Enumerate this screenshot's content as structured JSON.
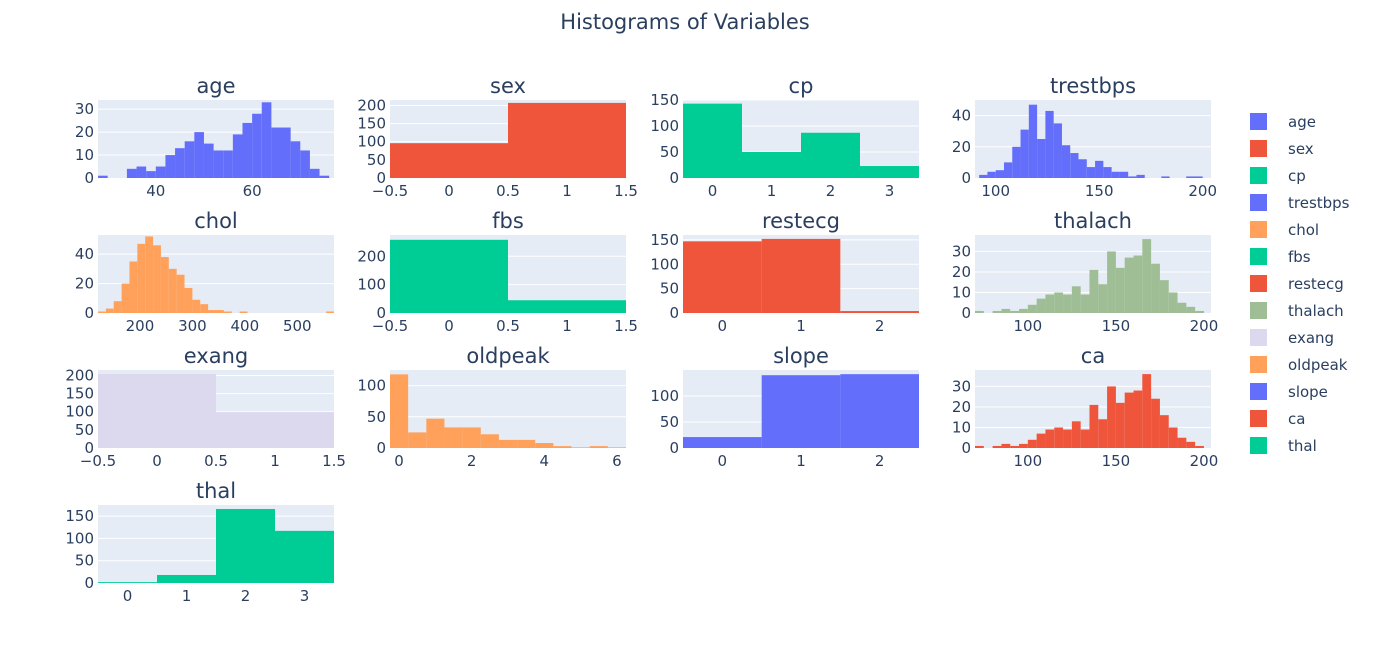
{
  "colors": {
    "blue": "#636efa",
    "red": "#ef553b",
    "teal": "#00cc96",
    "orange": "#ffa15a",
    "sage": "#9fbe95",
    "lavender": "#dcd8ee",
    "plot_bg": "#e5ecf6"
  },
  "chart_data": {
    "type": "bar",
    "title": "Histograms of Variables",
    "legend": {
      "placement": "right",
      "items": [
        {
          "label": "age",
          "color": "#636efa"
        },
        {
          "label": "sex",
          "color": "#ef553b"
        },
        {
          "label": "cp",
          "color": "#00cc96"
        },
        {
          "label": "trestbps",
          "color": "#636efa"
        },
        {
          "label": "chol",
          "color": "#ffa15a"
        },
        {
          "label": "fbs",
          "color": "#00cc96"
        },
        {
          "label": "restecg",
          "color": "#ef553b"
        },
        {
          "label": "thalach",
          "color": "#9fbe95"
        },
        {
          "label": "exang",
          "color": "#dcd8ee"
        },
        {
          "label": "oldpeak",
          "color": "#ffa15a"
        },
        {
          "label": "slope",
          "color": "#636efa"
        },
        {
          "label": "ca",
          "color": "#ef553b"
        },
        {
          "label": "thal",
          "color": "#00cc96"
        }
      ]
    },
    "panels": [
      {
        "title": "age",
        "color": "#636efa",
        "xlim": [
          28,
          77
        ],
        "ylim": [
          0,
          34
        ],
        "xticks": [
          40,
          60
        ],
        "yticks": [
          0,
          10,
          20,
          30
        ],
        "bin_width": 2,
        "bin_start": 28,
        "counts": [
          1,
          0,
          0,
          4,
          5,
          3,
          5,
          10,
          13,
          16,
          20,
          15,
          12,
          12,
          19,
          24,
          28,
          33,
          22,
          22,
          16,
          12,
          4,
          1,
          0,
          1
        ]
      },
      {
        "title": "sex",
        "color": "#ef553b",
        "xlim": [
          -0.5,
          1.5
        ],
        "ylim": [
          0,
          215
        ],
        "xticks": [
          -0.5,
          0,
          0.5,
          1,
          1.5
        ],
        "yticks": [
          0,
          50,
          100,
          150,
          200
        ],
        "bin_width": 1,
        "bin_start": -0.5,
        "counts": [
          96,
          207
        ]
      },
      {
        "title": "cp",
        "color": "#00cc96",
        "xlim": [
          -0.5,
          3.5
        ],
        "ylim": [
          0,
          150
        ],
        "xticks": [
          0,
          1,
          2,
          3
        ],
        "yticks": [
          0,
          50,
          100,
          150
        ],
        "bin_width": 1,
        "bin_start": -0.5,
        "counts": [
          143,
          50,
          87,
          23
        ]
      },
      {
        "title": "trestbps",
        "color": "#636efa",
        "xlim": [
          90,
          204
        ],
        "ylim": [
          0,
          50
        ],
        "xticks": [
          100,
          150,
          200
        ],
        "yticks": [
          0,
          20,
          40
        ],
        "bin_width": 4,
        "bin_start": 92,
        "counts": [
          2,
          4,
          5,
          10,
          20,
          31,
          47,
          25,
          43,
          35,
          21,
          16,
          12,
          7,
          11,
          7,
          4,
          4,
          1,
          2,
          0,
          0,
          1,
          0,
          0,
          1,
          1,
          0,
          1
        ]
      },
      {
        "title": "chol",
        "color": "#ffa15a",
        "xlim": [
          120,
          570
        ],
        "ylim": [
          0,
          53
        ],
        "xticks": [
          200,
          300,
          400,
          500
        ],
        "yticks": [
          0,
          20,
          40
        ],
        "bin_width": 15,
        "bin_start": 120,
        "counts": [
          1,
          3,
          8,
          20,
          35,
          47,
          52,
          46,
          38,
          30,
          26,
          17,
          9,
          6,
          2,
          2,
          1,
          0,
          1,
          0,
          0,
          0,
          0,
          0,
          0,
          0,
          0,
          0,
          0,
          1
        ]
      },
      {
        "title": "fbs",
        "color": "#00cc96",
        "xlim": [
          -0.5,
          1.5
        ],
        "ylim": [
          0,
          275
        ],
        "xticks": [
          -0.5,
          0,
          0.5,
          1,
          1.5
        ],
        "yticks": [
          0,
          100,
          200
        ],
        "bin_width": 1,
        "bin_start": -0.5,
        "counts": [
          258,
          45
        ]
      },
      {
        "title": "restecg",
        "color": "#ef553b",
        "xlim": [
          -0.5,
          2.5
        ],
        "ylim": [
          0,
          160
        ],
        "xticks": [
          0,
          1,
          2
        ],
        "yticks": [
          0,
          50,
          100,
          150
        ],
        "bin_width": 1,
        "bin_start": -0.5,
        "counts": [
          147,
          152,
          4
        ]
      },
      {
        "title": "thalach",
        "color": "#9fbe95",
        "xlim": [
          70,
          204
        ],
        "ylim": [
          0,
          38
        ],
        "xticks": [
          100,
          150,
          200
        ],
        "yticks": [
          0,
          10,
          20,
          30
        ],
        "bin_width": 5,
        "bin_start": 70,
        "counts": [
          1,
          0,
          1,
          2,
          1,
          2,
          4,
          7,
          9,
          10,
          9,
          13,
          9,
          21,
          14,
          30,
          22,
          27,
          28,
          36,
          24,
          16,
          10,
          5,
          3,
          1,
          0
        ]
      },
      {
        "title": "exang",
        "color": "#dcd8ee",
        "xlim": [
          -0.5,
          1.5
        ],
        "ylim": [
          0,
          215
        ],
        "xticks": [
          -0.5,
          0,
          0.5,
          1,
          1.5
        ],
        "yticks": [
          0,
          50,
          100,
          150,
          200
        ],
        "bin_width": 1,
        "bin_start": -0.5,
        "counts": [
          204,
          99
        ]
      },
      {
        "title": "oldpeak",
        "color": "#ffa15a",
        "xlim": [
          -0.25,
          6.25
        ],
        "ylim": [
          0,
          125
        ],
        "xticks": [
          0,
          2,
          4,
          6
        ],
        "yticks": [
          0,
          50,
          100
        ],
        "bin_width": 0.5,
        "bin_start": -0.25,
        "counts": [
          118,
          25,
          47,
          33,
          33,
          22,
          13,
          13,
          8,
          3,
          1,
          3,
          1
        ]
      },
      {
        "title": "slope",
        "color": "#636efa",
        "xlim": [
          -0.5,
          2.5
        ],
        "ylim": [
          0,
          150
        ],
        "xticks": [
          0,
          1,
          2
        ],
        "yticks": [
          0,
          50,
          100
        ],
        "bin_width": 1,
        "bin_start": -0.5,
        "counts": [
          21,
          140,
          142
        ]
      },
      {
        "title": "ca",
        "color": "#ef553b",
        "xlim": [
          70,
          204
        ],
        "ylim": [
          0,
          38
        ],
        "xticks": [
          100,
          150,
          200
        ],
        "yticks": [
          0,
          10,
          20,
          30
        ],
        "bin_width": 5,
        "bin_start": 70,
        "counts": [
          1,
          0,
          1,
          2,
          1,
          2,
          4,
          7,
          9,
          10,
          9,
          13,
          9,
          21,
          14,
          30,
          22,
          27,
          28,
          36,
          24,
          16,
          10,
          5,
          3,
          1,
          0
        ]
      },
      {
        "title": "thal",
        "color": "#00cc96",
        "xlim": [
          -0.5,
          3.5
        ],
        "ylim": [
          0,
          175
        ],
        "xticks": [
          0,
          1,
          2,
          3
        ],
        "yticks": [
          0,
          50,
          100,
          150
        ],
        "bin_width": 1,
        "bin_start": -0.5,
        "counts": [
          2,
          18,
          166,
          117
        ]
      }
    ]
  }
}
